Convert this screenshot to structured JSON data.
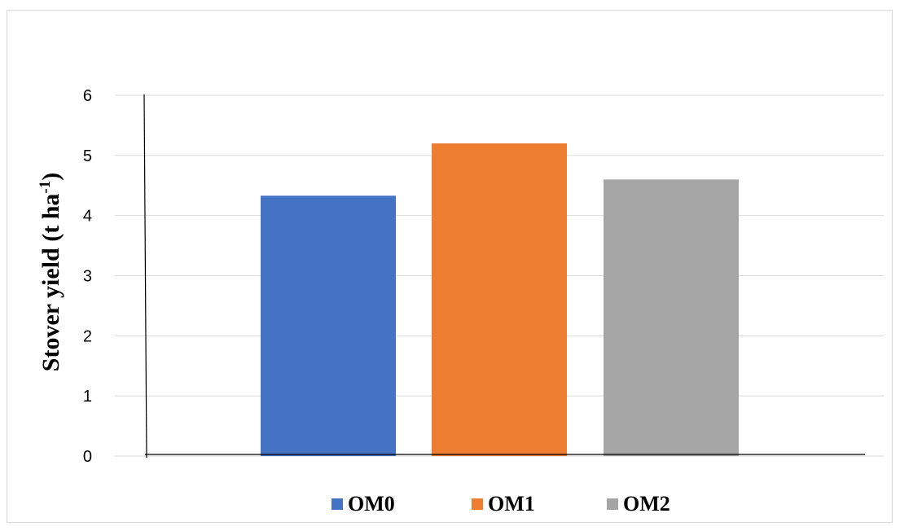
{
  "chart_data": {
    "type": "bar",
    "title": "",
    "xlabel": "",
    "ylabel": {
      "main": "Stover yield (t ha",
      "superscript": "-1",
      "suffix": ")"
    },
    "categories": [
      ""
    ],
    "series": [
      {
        "name": "OM0",
        "values": [
          4.33
        ],
        "color": "#4472C4"
      },
      {
        "name": "OM1",
        "values": [
          5.2
        ],
        "color": "#ED7D31"
      },
      {
        "name": "OM2",
        "values": [
          4.6
        ],
        "color": "#A5A5A5"
      }
    ],
    "ylim": [
      0,
      6
    ],
    "yticks": [
      0,
      1,
      2,
      3,
      4,
      5,
      6
    ],
    "grid": true,
    "legend_position": "bottom"
  }
}
